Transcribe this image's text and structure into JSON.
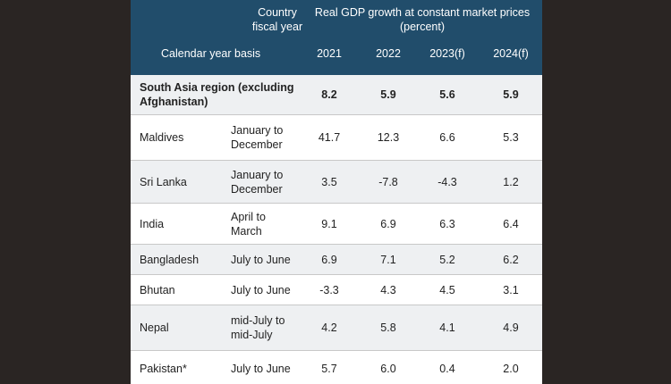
{
  "header": {
    "fy_label_line1": "Country",
    "fy_label_line2": "fiscal year",
    "title_line1": "Real GDP growth at constant market prices",
    "title_line2": "(percent)",
    "basis_label": "Calendar year basis",
    "years": [
      "2021",
      "2022",
      "2023(f)",
      "2024(f)"
    ]
  },
  "region": {
    "label_line1": "South Asia region (excluding",
    "label_line2": "Afghanistan)",
    "values": [
      "8.2",
      "5.9",
      "5.6",
      "5.9"
    ]
  },
  "rows": [
    {
      "country": "Maldives",
      "fy1": "January to",
      "fy2": "December",
      "values": [
        "41.7",
        "12.3",
        "6.6",
        "5.3"
      ]
    },
    {
      "country": "Sri Lanka",
      "fy1": "January to",
      "fy2": "December",
      "values": [
        "3.5",
        "-7.8",
        "-4.3",
        "1.2"
      ]
    },
    {
      "country": "India",
      "fy1": "April to",
      "fy2": "March",
      "values": [
        "9.1",
        "6.9",
        "6.3",
        "6.4"
      ]
    },
    {
      "country": "Bangladesh",
      "fy1": "July to June",
      "fy2": "",
      "values": [
        "6.9",
        "7.1",
        "5.2",
        "6.2"
      ]
    },
    {
      "country": "Bhutan",
      "fy1": "July to June",
      "fy2": "",
      "values": [
        "-3.3",
        "4.3",
        "4.5",
        "3.1"
      ]
    },
    {
      "country": "Nepal",
      "fy1": "mid-July to",
      "fy2": "mid-July",
      "values": [
        "4.2",
        "5.8",
        "4.1",
        "4.9"
      ]
    },
    {
      "country": "Pakistan*",
      "fy1": "July to June",
      "fy2": "",
      "values": [
        "5.7",
        "6.0",
        "0.4",
        "2.0"
      ]
    }
  ],
  "colors": {
    "header_bg": "#214d6b",
    "shade_bg": "#eef0f2",
    "page_bg": "#2a2523"
  }
}
